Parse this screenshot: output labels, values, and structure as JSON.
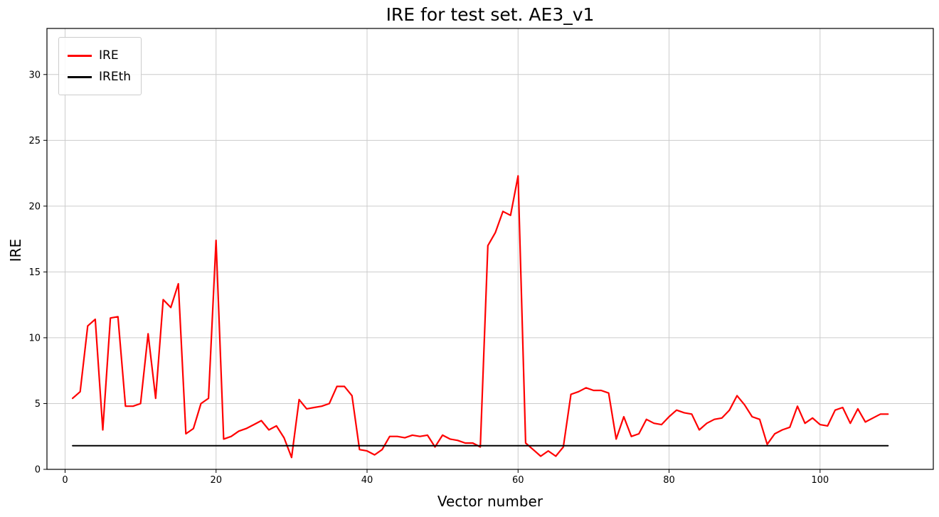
{
  "figure": {
    "title": "IRE for test set. AE3_v1",
    "xlabel": "Vector number",
    "ylabel": "IRE"
  },
  "legend": {
    "items": [
      {
        "label": "IRE",
        "color": "#ff0000"
      },
      {
        "label": "IREth",
        "color": "#000000"
      }
    ]
  },
  "chart_data": {
    "type": "line",
    "title": "IRE for test set. AE3_v1",
    "xlabel": "Vector number",
    "ylabel": "IRE",
    "xlim": [
      -2.4,
      115
    ],
    "ylim": [
      0,
      33.5
    ],
    "xticks": [
      0,
      20,
      40,
      60,
      80,
      100
    ],
    "yticks": [
      0,
      5,
      10,
      15,
      20,
      25,
      30
    ],
    "grid": true,
    "grid_color": "#cccccc",
    "legend_position": "upper left",
    "x": [
      1,
      2,
      3,
      4,
      5,
      6,
      7,
      8,
      9,
      10,
      11,
      12,
      13,
      14,
      15,
      16,
      17,
      18,
      19,
      20,
      21,
      22,
      23,
      24,
      25,
      26,
      27,
      28,
      29,
      30,
      31,
      32,
      33,
      34,
      35,
      36,
      37,
      38,
      39,
      40,
      41,
      42,
      43,
      44,
      45,
      46,
      47,
      48,
      49,
      50,
      51,
      52,
      53,
      54,
      55,
      56,
      57,
      58,
      59,
      60,
      61,
      62,
      63,
      64,
      65,
      66,
      67,
      68,
      69,
      70,
      71,
      72,
      73,
      74,
      75,
      76,
      77,
      78,
      79,
      80,
      81,
      82,
      83,
      84,
      85,
      86,
      87,
      88,
      89,
      90,
      91,
      92,
      93,
      94,
      95,
      96,
      97,
      98,
      99,
      100,
      101,
      102,
      103,
      104,
      105,
      106,
      107,
      108,
      109
    ],
    "series": [
      {
        "name": "IRE",
        "color": "#ff0000",
        "width": 2.2,
        "values": [
          5.4,
          5.9,
          10.9,
          11.4,
          3.0,
          11.5,
          11.6,
          4.8,
          4.8,
          5.0,
          10.3,
          5.4,
          12.9,
          12.3,
          14.1,
          2.7,
          3.1,
          5.0,
          5.4,
          17.4,
          2.3,
          2.5,
          2.9,
          3.1,
          3.4,
          3.7,
          3.0,
          3.3,
          2.4,
          0.9,
          5.3,
          4.6,
          4.7,
          4.8,
          5.0,
          6.3,
          6.3,
          5.6,
          1.5,
          1.4,
          1.1,
          1.5,
          2.5,
          2.5,
          2.4,
          2.6,
          2.5,
          2.6,
          1.7,
          2.6,
          2.3,
          2.2,
          2.0,
          2.0,
          1.7,
          17.0,
          18.0,
          19.6,
          19.3,
          22.3,
          2.0,
          1.5,
          1.0,
          1.4,
          1.0,
          1.7,
          5.7,
          5.9,
          6.2,
          6.0,
          6.0,
          5.8,
          2.3,
          4.0,
          2.5,
          2.7,
          3.8,
          3.5,
          3.4,
          4.0,
          4.5,
          4.3,
          4.2,
          3.0,
          3.5,
          3.8,
          3.9,
          4.5,
          5.6,
          4.9,
          4.0,
          3.8,
          1.9,
          2.7,
          3.0,
          3.2,
          4.8,
          3.5,
          3.9,
          3.4,
          3.3,
          4.5,
          4.7,
          3.5,
          4.6,
          3.6,
          3.9,
          4.2,
          4.2
        ]
      },
      {
        "name": "IREth",
        "color": "#000000",
        "width": 2,
        "x": [
          1,
          109
        ],
        "values": [
          1.8,
          1.8
        ]
      }
    ]
  }
}
